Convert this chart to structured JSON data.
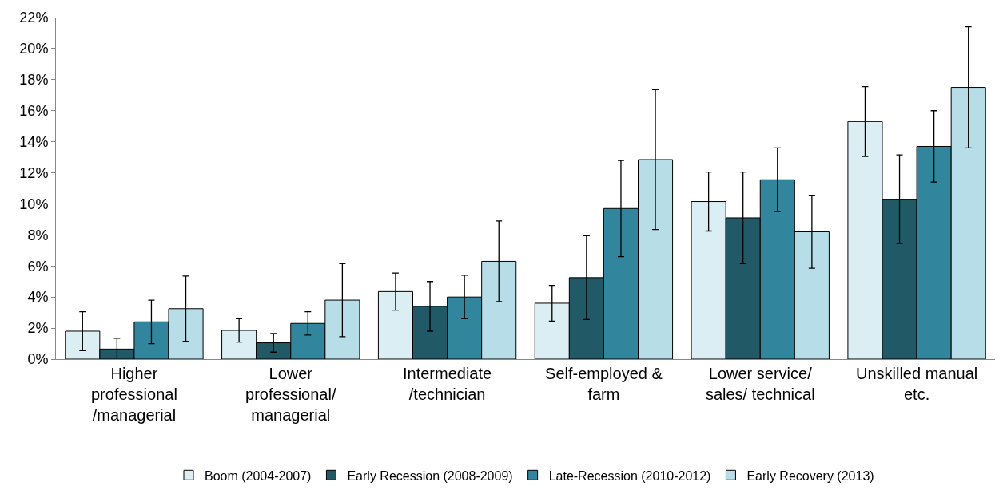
{
  "chart_data": {
    "type": "bar",
    "categories": [
      "Higher professional /managerial",
      "Lower professional/ managerial",
      "Intermediate /technician",
      "Self-employed & farm",
      "Lower service/ sales/ technical",
      "Unskilled manual etc."
    ],
    "series": [
      {
        "name": "Boom (2004-2007)",
        "color": "#daeef3",
        "values": [
          1.8,
          1.85,
          4.35,
          3.6,
          10.15,
          15.3
        ],
        "errors": [
          1.25,
          0.75,
          1.2,
          1.15,
          1.9,
          2.25
        ]
      },
      {
        "name": "Early Recession (2008-2009)",
        "color": "#215967",
        "values": [
          0.65,
          1.05,
          3.4,
          5.25,
          9.1,
          10.3
        ],
        "errors": [
          0.7,
          0.6,
          1.6,
          2.7,
          2.95,
          2.85
        ]
      },
      {
        "name": "Late-Recession (2010-2012)",
        "color": "#31859c",
        "values": [
          2.4,
          2.3,
          4.0,
          9.7,
          11.55,
          13.7
        ],
        "errors": [
          1.4,
          0.75,
          1.4,
          3.1,
          2.05,
          2.3
        ]
      },
      {
        "name": "Early Recovery (2013)",
        "color": "#b7dee8",
        "values": [
          3.25,
          3.8,
          6.3,
          12.85,
          8.2,
          17.5
        ],
        "errors": [
          2.1,
          2.35,
          2.6,
          4.5,
          2.35,
          3.9
        ]
      }
    ],
    "ylim": [
      0,
      22
    ],
    "yticks": [
      {
        "value": 0,
        "label": "0%"
      },
      {
        "value": 2,
        "label": "2%"
      },
      {
        "value": 4,
        "label": "4%"
      },
      {
        "value": 6,
        "label": "6%"
      },
      {
        "value": 8,
        "label": "8%"
      },
      {
        "value": 10,
        "label": "10%"
      },
      {
        "value": 12,
        "label": "12%"
      },
      {
        "value": 14,
        "label": "14%"
      },
      {
        "value": 16,
        "label": "16%"
      },
      {
        "value": 18,
        "label": "18%"
      },
      {
        "value": 20,
        "label": "20%"
      },
      {
        "value": 22,
        "label": "22%"
      }
    ],
    "grid": false,
    "legend": "bottom"
  }
}
